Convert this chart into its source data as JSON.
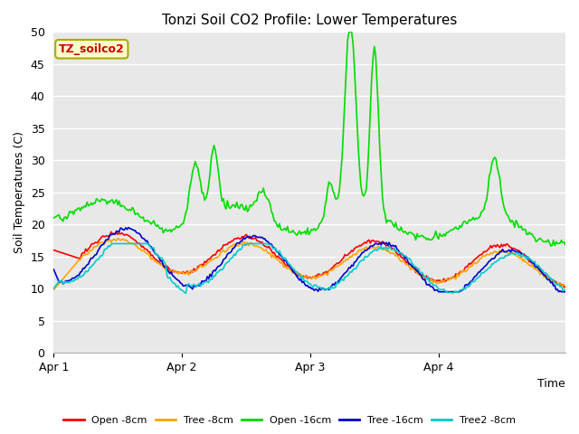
{
  "title": "Tonzi Soil CO2 Profile: Lower Temperatures",
  "ylabel": "Soil Temperatures (C)",
  "xlabel": "Time",
  "annotation": "TZ_soilco2",
  "ylim": [
    0,
    50
  ],
  "yticks": [
    0,
    5,
    10,
    15,
    20,
    25,
    30,
    35,
    40,
    45,
    50
  ],
  "xtick_labels": [
    "Apr 1",
    "Apr 2",
    "Apr 3",
    "Apr 4"
  ],
  "xtick_positions": [
    0,
    96,
    192,
    288
  ],
  "background_color": "#e8e8e8",
  "plot_bg_color": "#e8e8e8",
  "series": {
    "open_8cm": {
      "color": "#ff0000",
      "label": "Open -8cm",
      "lw": 1.2
    },
    "tree_8cm": {
      "color": "#ffa500",
      "label": "Tree -8cm",
      "lw": 1.2
    },
    "open_16cm": {
      "color": "#00dd00",
      "label": "Open -16cm",
      "lw": 1.2
    },
    "tree_16cm": {
      "color": "#0000cc",
      "label": "Tree -16cm",
      "lw": 1.2
    },
    "tree2_8cm": {
      "color": "#00cccc",
      "label": "Tree2 -8cm",
      "lw": 1.2
    }
  },
  "n_points": 384,
  "figsize": [
    6.4,
    4.8
  ],
  "dpi": 100
}
